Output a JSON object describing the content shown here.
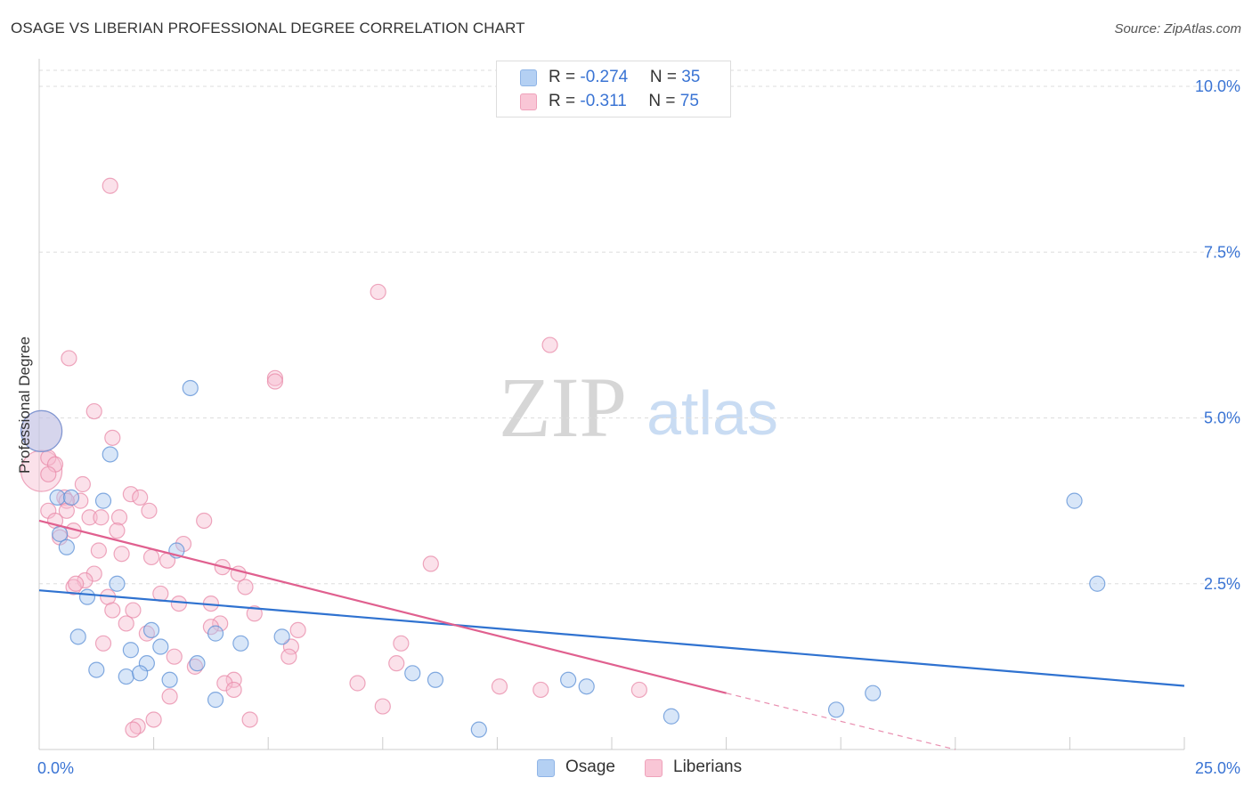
{
  "title": "OSAGE VS LIBERIAN PROFESSIONAL DEGREE CORRELATION CHART",
  "source": "Source: ZipAtlas.com",
  "watermark": {
    "zip": "ZIP",
    "atlas": "atlas"
  },
  "legend": {
    "osage": {
      "r_label": "R = ",
      "r_value": "-0.274",
      "n_label": "N = ",
      "n_value": "35"
    },
    "liberians": {
      "r_label": "R = ",
      "r_value": "-0.311",
      "n_label": "N = ",
      "n_value": "75"
    }
  },
  "bottom_legend": {
    "osage": "Osage",
    "liberians": "Liberians"
  },
  "colors": {
    "osage_fill": "#a9c8f0",
    "osage_stroke": "#5b8fd6",
    "osage_line": "#2f72d0",
    "liberians_fill": "#f6bcd0",
    "liberians_stroke": "#e889a8",
    "liberians_line": "#e0608f",
    "tick_label": "#3a74d4",
    "grid": "#dddddd"
  },
  "chart_data": {
    "type": "scatter",
    "title": "OSAGE VS LIBERIAN PROFESSIONAL DEGREE CORRELATION CHART",
    "xlabel": "",
    "ylabel": "Professional Degree",
    "xlim": [
      0,
      25
    ],
    "ylim": [
      0,
      10.5
    ],
    "x_tick_labels": [
      "0.0%",
      "25.0%"
    ],
    "y_ticks": [
      2.5,
      5.0,
      7.5,
      10.0
    ],
    "y_tick_labels": [
      "2.5%",
      "5.0%",
      "7.5%",
      "10.0%"
    ],
    "grid": true,
    "legend_position": "top-center",
    "series": [
      {
        "name": "Osage",
        "r": -0.274,
        "n": 35,
        "trend": {
          "x": [
            0,
            25
          ],
          "y": [
            2.4,
            0.96
          ]
        },
        "points": [
          {
            "x": 0.05,
            "y": 4.8,
            "big": true
          },
          {
            "x": 0.4,
            "y": 3.8
          },
          {
            "x": 0.7,
            "y": 3.8
          },
          {
            "x": 1.4,
            "y": 3.75
          },
          {
            "x": 0.45,
            "y": 3.25
          },
          {
            "x": 0.6,
            "y": 3.05
          },
          {
            "x": 1.55,
            "y": 4.45
          },
          {
            "x": 3.3,
            "y": 5.45
          },
          {
            "x": 1.05,
            "y": 2.3
          },
          {
            "x": 1.7,
            "y": 2.5
          },
          {
            "x": 0.85,
            "y": 1.7
          },
          {
            "x": 2.0,
            "y": 1.5
          },
          {
            "x": 2.45,
            "y": 1.8
          },
          {
            "x": 2.65,
            "y": 1.55
          },
          {
            "x": 1.25,
            "y": 1.2
          },
          {
            "x": 2.35,
            "y": 1.3
          },
          {
            "x": 1.9,
            "y": 1.1
          },
          {
            "x": 2.2,
            "y": 1.15
          },
          {
            "x": 2.85,
            "y": 1.05
          },
          {
            "x": 3.45,
            "y": 1.3
          },
          {
            "x": 3.85,
            "y": 1.75
          },
          {
            "x": 4.4,
            "y": 1.6
          },
          {
            "x": 5.3,
            "y": 1.7
          },
          {
            "x": 3.0,
            "y": 3.0
          },
          {
            "x": 3.85,
            "y": 0.75
          },
          {
            "x": 8.15,
            "y": 1.15
          },
          {
            "x": 8.65,
            "y": 1.05
          },
          {
            "x": 11.55,
            "y": 1.05
          },
          {
            "x": 11.95,
            "y": 0.95
          },
          {
            "x": 9.6,
            "y": 0.3
          },
          {
            "x": 13.8,
            "y": 0.5
          },
          {
            "x": 17.4,
            "y": 0.6
          },
          {
            "x": 18.2,
            "y": 0.85
          },
          {
            "x": 22.6,
            "y": 3.75
          },
          {
            "x": 23.1,
            "y": 2.5
          }
        ]
      },
      {
        "name": "Liberians",
        "r": -0.311,
        "n": 75,
        "trend": {
          "x": [
            0,
            15
          ],
          "y": [
            3.45,
            0.85
          ]
        },
        "trend_dashed": {
          "x": [
            15,
            20
          ],
          "y": [
            0.85,
            0.0
          ]
        },
        "points": [
          {
            "x": 0.05,
            "y": 4.8,
            "big": true
          },
          {
            "x": 0.05,
            "y": 4.2,
            "big": true
          },
          {
            "x": 1.55,
            "y": 8.5
          },
          {
            "x": 7.4,
            "y": 6.9
          },
          {
            "x": 11.15,
            "y": 6.1
          },
          {
            "x": 0.65,
            "y": 5.9
          },
          {
            "x": 5.15,
            "y": 5.6
          },
          {
            "x": 5.15,
            "y": 5.55
          },
          {
            "x": 1.2,
            "y": 5.1
          },
          {
            "x": 1.6,
            "y": 4.7
          },
          {
            "x": 0.2,
            "y": 4.4
          },
          {
            "x": 0.35,
            "y": 4.3
          },
          {
            "x": 0.2,
            "y": 4.15
          },
          {
            "x": 0.95,
            "y": 4.0
          },
          {
            "x": 2.0,
            "y": 3.85
          },
          {
            "x": 0.55,
            "y": 3.8
          },
          {
            "x": 0.9,
            "y": 3.75
          },
          {
            "x": 0.6,
            "y": 3.75
          },
          {
            "x": 2.2,
            "y": 3.8
          },
          {
            "x": 0.2,
            "y": 3.6
          },
          {
            "x": 0.6,
            "y": 3.6
          },
          {
            "x": 2.4,
            "y": 3.6
          },
          {
            "x": 1.1,
            "y": 3.5
          },
          {
            "x": 1.35,
            "y": 3.5
          },
          {
            "x": 1.75,
            "y": 3.5
          },
          {
            "x": 0.35,
            "y": 3.45
          },
          {
            "x": 3.6,
            "y": 3.45
          },
          {
            "x": 1.7,
            "y": 3.3
          },
          {
            "x": 0.75,
            "y": 3.3
          },
          {
            "x": 0.45,
            "y": 3.2
          },
          {
            "x": 3.15,
            "y": 3.1
          },
          {
            "x": 1.3,
            "y": 3.0
          },
          {
            "x": 1.8,
            "y": 2.95
          },
          {
            "x": 2.45,
            "y": 2.9
          },
          {
            "x": 2.8,
            "y": 2.85
          },
          {
            "x": 4.0,
            "y": 2.75
          },
          {
            "x": 8.55,
            "y": 2.8
          },
          {
            "x": 1.2,
            "y": 2.65
          },
          {
            "x": 4.35,
            "y": 2.65
          },
          {
            "x": 1.0,
            "y": 2.55
          },
          {
            "x": 0.75,
            "y": 2.45
          },
          {
            "x": 4.5,
            "y": 2.45
          },
          {
            "x": 0.8,
            "y": 2.5
          },
          {
            "x": 1.5,
            "y": 2.3
          },
          {
            "x": 2.65,
            "y": 2.35
          },
          {
            "x": 3.75,
            "y": 2.2
          },
          {
            "x": 3.05,
            "y": 2.2
          },
          {
            "x": 2.05,
            "y": 2.1
          },
          {
            "x": 4.7,
            "y": 2.05
          },
          {
            "x": 1.6,
            "y": 2.1
          },
          {
            "x": 3.95,
            "y": 1.9
          },
          {
            "x": 1.9,
            "y": 1.9
          },
          {
            "x": 3.75,
            "y": 1.85
          },
          {
            "x": 5.65,
            "y": 1.8
          },
          {
            "x": 2.35,
            "y": 1.75
          },
          {
            "x": 1.4,
            "y": 1.6
          },
          {
            "x": 5.5,
            "y": 1.55
          },
          {
            "x": 7.9,
            "y": 1.6
          },
          {
            "x": 5.45,
            "y": 1.4
          },
          {
            "x": 2.95,
            "y": 1.4
          },
          {
            "x": 3.4,
            "y": 1.25
          },
          {
            "x": 7.8,
            "y": 1.3
          },
          {
            "x": 4.25,
            "y": 1.05
          },
          {
            "x": 4.05,
            "y": 1.0
          },
          {
            "x": 4.25,
            "y": 0.9
          },
          {
            "x": 6.95,
            "y": 1.0
          },
          {
            "x": 10.05,
            "y": 0.95
          },
          {
            "x": 10.95,
            "y": 0.9
          },
          {
            "x": 13.1,
            "y": 0.9
          },
          {
            "x": 2.85,
            "y": 0.8
          },
          {
            "x": 7.5,
            "y": 0.65
          },
          {
            "x": 2.5,
            "y": 0.45
          },
          {
            "x": 4.6,
            "y": 0.45
          },
          {
            "x": 2.15,
            "y": 0.35
          },
          {
            "x": 2.05,
            "y": 0.3
          }
        ]
      }
    ]
  }
}
